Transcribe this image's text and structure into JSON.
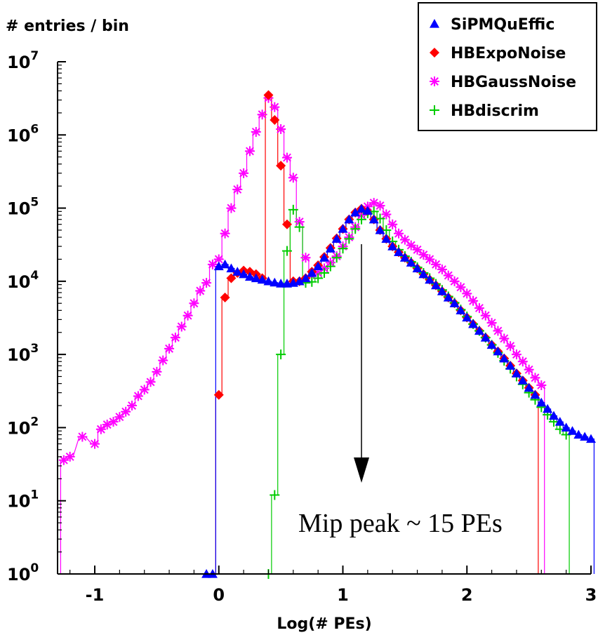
{
  "chart_data": {
    "type": "line",
    "title": "",
    "xlabel": "Log(# PEs)",
    "ylabel": "# entries / bin",
    "xlim": [
      -1.3,
      3.0
    ],
    "ylim": [
      1,
      10000000
    ],
    "yscale": "log",
    "grid": false,
    "legend_position": "top-right",
    "x_ticks": [
      "-1",
      "0",
      "1",
      "2",
      "3"
    ],
    "y_ticks": [
      {
        "base": "10",
        "exp": "0"
      },
      {
        "base": "10",
        "exp": "1"
      },
      {
        "base": "10",
        "exp": "2"
      },
      {
        "base": "10",
        "exp": "3"
      },
      {
        "base": "10",
        "exp": "4"
      },
      {
        "base": "10",
        "exp": "5"
      },
      {
        "base": "10",
        "exp": "6"
      },
      {
        "base": "10",
        "exp": "7"
      }
    ],
    "annotation": "Mip peak ~ 15 PEs",
    "annotation_arrow_x": 1.15,
    "series": [
      {
        "name": "SiPMQuEffic",
        "color": "#0000ff",
        "marker": "triangle",
        "x": [
          -0.1,
          -0.05,
          0.0,
          0.05,
          0.1,
          0.15,
          0.2,
          0.25,
          0.3,
          0.35,
          0.4,
          0.45,
          0.5,
          0.55,
          0.6,
          0.65,
          0.7,
          0.75,
          0.8,
          0.85,
          0.9,
          0.95,
          1.0,
          1.05,
          1.1,
          1.15,
          1.2,
          1.25,
          1.3,
          1.35,
          1.4,
          1.45,
          1.5,
          1.55,
          1.6,
          1.65,
          1.7,
          1.75,
          1.8,
          1.85,
          1.9,
          1.95,
          2.0,
          2.05,
          2.1,
          2.15,
          2.2,
          2.25,
          2.3,
          2.35,
          2.4,
          2.45,
          2.5,
          2.55,
          2.6,
          2.65,
          2.7,
          2.75,
          2.8,
          2.85,
          2.9,
          2.95,
          3.0
        ],
        "y": [
          1,
          1,
          16000,
          17000,
          15000,
          13500,
          12500,
          11500,
          11000,
          10500,
          10000,
          9600,
          9300,
          9300,
          9500,
          10000,
          11000,
          13000,
          16000,
          21000,
          28000,
          38000,
          52000,
          70000,
          87000,
          98000,
          92000,
          70000,
          50000,
          38000,
          30000,
          25000,
          21000,
          18000,
          15000,
          12500,
          10500,
          8800,
          7300,
          6000,
          5000,
          4000,
          3200,
          2600,
          2100,
          1700,
          1350,
          1100,
          880,
          700,
          550,
          440,
          350,
          280,
          220,
          180,
          145,
          120,
          100,
          90,
          80,
          75,
          70
        ]
      },
      {
        "name": "HBExpoNoise",
        "color": "#ff0000",
        "marker": "diamond",
        "x": [
          0.0,
          0.05,
          0.1,
          0.15,
          0.2,
          0.25,
          0.3,
          0.35,
          0.4,
          0.45,
          0.5,
          0.55,
          0.6,
          0.65,
          0.7,
          0.75,
          0.8,
          0.85,
          0.9,
          0.95,
          1.0,
          1.05,
          1.1,
          1.15,
          1.2,
          1.25,
          1.3,
          1.35,
          1.4,
          1.45,
          1.5,
          1.55,
          1.6,
          1.65,
          1.7,
          1.75,
          1.8,
          1.85,
          1.9,
          1.95,
          2.0,
          2.05,
          2.1,
          2.15,
          2.2,
          2.25,
          2.3,
          2.35,
          2.4,
          2.45,
          2.5,
          2.55
        ],
        "y": [
          280,
          6000,
          11000,
          13000,
          14000,
          13500,
          12500,
          11000,
          3500000,
          1600000,
          380000,
          60000,
          10000,
          10000,
          11000,
          13500,
          16500,
          21500,
          28500,
          38500,
          52000,
          70000,
          87000,
          98000,
          90000,
          70000,
          50000,
          38000,
          30000,
          25000,
          21000,
          18000,
          15000,
          12500,
          10500,
          8800,
          7300,
          6000,
          5000,
          4000,
          3200,
          2600,
          2100,
          1700,
          1350,
          1100,
          880,
          700,
          550,
          440,
          350,
          280
        ]
      },
      {
        "name": "HBGaussNoise",
        "color": "#ff00ff",
        "marker": "star",
        "x": [
          -1.25,
          -1.2,
          -1.1,
          -1.0,
          -0.95,
          -0.9,
          -0.85,
          -0.8,
          -0.75,
          -0.7,
          -0.65,
          -0.6,
          -0.55,
          -0.5,
          -0.45,
          -0.4,
          -0.35,
          -0.3,
          -0.25,
          -0.2,
          -0.15,
          -0.1,
          -0.05,
          0.0,
          0.05,
          0.1,
          0.15,
          0.2,
          0.25,
          0.3,
          0.35,
          0.4,
          0.45,
          0.5,
          0.55,
          0.6,
          0.65,
          0.7,
          0.75,
          0.8,
          0.85,
          0.9,
          0.95,
          1.0,
          1.05,
          1.1,
          1.15,
          1.2,
          1.25,
          1.3,
          1.35,
          1.4,
          1.45,
          1.5,
          1.55,
          1.6,
          1.65,
          1.7,
          1.75,
          1.8,
          1.85,
          1.9,
          1.95,
          2.0,
          2.05,
          2.1,
          2.15,
          2.2,
          2.25,
          2.3,
          2.35,
          2.4,
          2.45,
          2.5,
          2.55,
          2.6
        ],
        "y": [
          36,
          40,
          75,
          60,
          95,
          110,
          120,
          140,
          165,
          200,
          270,
          330,
          420,
          580,
          830,
          1200,
          1700,
          2400,
          3400,
          5000,
          7400,
          9500,
          17000,
          20000,
          45000,
          100000,
          180000,
          300000,
          600000,
          1100000,
          1900000,
          3200000,
          2400000,
          1200000,
          490000,
          260000,
          65000,
          21000,
          12000,
          13000,
          15000,
          18000,
          22000,
          30000,
          40000,
          55000,
          80000,
          105000,
          118000,
          108000,
          82000,
          60000,
          45000,
          37000,
          31000,
          27000,
          23000,
          20000,
          17000,
          14500,
          12000,
          10000,
          8300,
          6800,
          5400,
          4300,
          3400,
          2700,
          2100,
          1650,
          1300,
          1000,
          800,
          620,
          480,
          380
        ]
      },
      {
        "name": "HBdiscrim",
        "color": "#00cc00",
        "marker": "plus",
        "x": [
          0.4,
          0.45,
          0.5,
          0.55,
          0.6,
          0.65,
          0.7,
          0.75,
          0.8,
          0.85,
          0.9,
          0.95,
          1.0,
          1.05,
          1.1,
          1.15,
          1.2,
          1.25,
          1.3,
          1.35,
          1.4,
          1.45,
          1.5,
          1.55,
          1.6,
          1.65,
          1.7,
          1.75,
          1.8,
          1.85,
          1.9,
          1.95,
          2.0,
          2.05,
          2.1,
          2.15,
          2.2,
          2.25,
          2.3,
          2.35,
          2.4,
          2.45,
          2.5,
          2.55,
          2.6,
          2.65,
          2.7,
          2.75,
          2.8
        ],
        "y": [
          1,
          12,
          1000,
          26000,
          95000,
          55000,
          9500,
          9800,
          11000,
          13000,
          16000,
          21000,
          28000,
          38000,
          52000,
          70000,
          85000,
          90000,
          72000,
          50000,
          35000,
          27000,
          22000,
          18500,
          15500,
          13000,
          11000,
          9200,
          7600,
          6200,
          5100,
          4100,
          3300,
          2600,
          2100,
          1700,
          1350,
          1050,
          820,
          640,
          500,
          390,
          300,
          240,
          190,
          150,
          120,
          95,
          80
        ]
      }
    ]
  }
}
